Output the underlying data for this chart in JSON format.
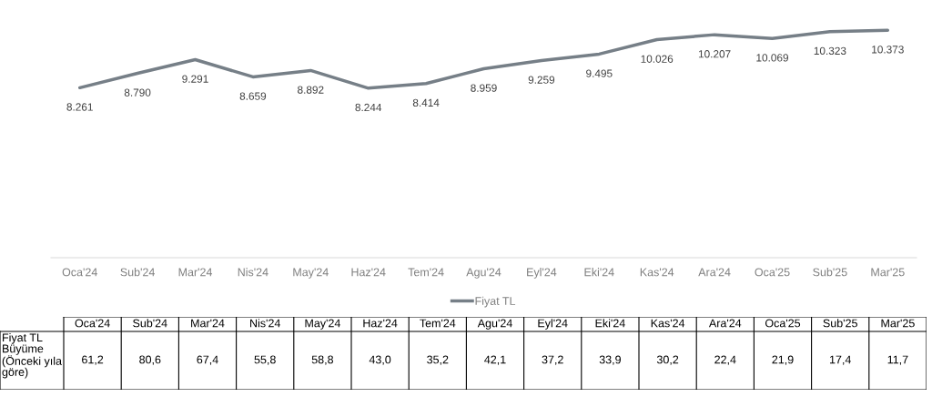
{
  "chart_data": [
    {
      "type": "line",
      "categories": [
        "Oca'24",
        "Sub'24",
        "Mar'24",
        "Nis'24",
        "May'24",
        "Haz'24",
        "Tem'24",
        "Agu'24",
        "Eyl'24",
        "Eki'24",
        "Kas'24",
        "Ara'24",
        "Oca'25",
        "Sub'25",
        "Mar'25"
      ],
      "series": [
        {
          "name": "Fiyat TL",
          "color": "#767f87",
          "values": [
            8261,
            8790,
            9291,
            8659,
            8892,
            8244,
            8414,
            8959,
            9259,
            9495,
            10026,
            10207,
            10069,
            10323,
            10373
          ],
          "value_labels": [
            "8.261",
            "8.790",
            "9.291",
            "8.659",
            "8.892",
            "8.244",
            "8.414",
            "8.959",
            "9.259",
            "9.495",
            "10.026",
            "10.207",
            "10.069",
            "10.323",
            "10.373"
          ]
        }
      ],
      "legend": "bottom",
      "marker": "none",
      "line_style": "solid"
    },
    {
      "type": "other",
      "title": "Fiyat TL Büyüme (Önceki yıla göre)",
      "categories": [
        "Oca'24",
        "Sub'24",
        "Mar'24",
        "Nis'24",
        "May'24",
        "Haz'24",
        "Tem'24",
        "Agu'24",
        "Eyl'24",
        "Eki'24",
        "Kas'24",
        "Ara'24",
        "Oca'25",
        "Sub'25",
        "Mar'25"
      ],
      "value_labels": [
        "61,2",
        "80,6",
        "67,4",
        "55,8",
        "58,8",
        "43,0",
        "35,2",
        "42,1",
        "37,2",
        "33,9",
        "30,2",
        "22,4",
        "21,9",
        "17,4",
        "11,7"
      ]
    }
  ]
}
